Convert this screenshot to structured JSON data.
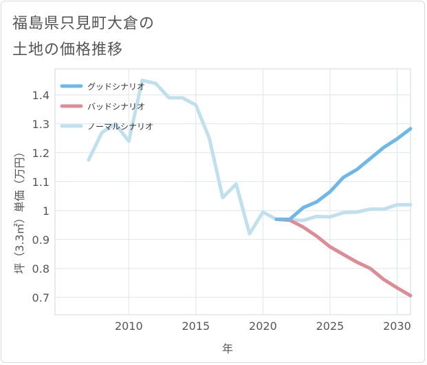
{
  "title_line1": "福島県只見町大倉の",
  "title_line2": "土地の価格推移",
  "chart_data": {
    "type": "line",
    "xlabel": "年",
    "ylabel": "坪（3.3㎡）単価（万円）",
    "xlim": [
      2004.5,
      2031
    ],
    "ylim": [
      0.64,
      1.49
    ],
    "x_ticks": [
      2010,
      2015,
      2020,
      2025,
      2030
    ],
    "y_ticks": [
      0.7,
      0.8,
      0.9,
      1.0,
      1.1,
      1.2,
      1.3,
      1.4
    ],
    "x_tick_labels": [
      "2010",
      "2015",
      "2020",
      "2025",
      "2030"
    ],
    "y_tick_labels": [
      "0.7",
      "0.8",
      "0.9",
      "1",
      "1.1",
      "1.2",
      "1.3",
      "1.4"
    ],
    "legend_position": "top-left",
    "series": [
      {
        "name": "グッドシナリオ",
        "color": "#6cb8ea",
        "x": [
          2021,
          2022,
          2023,
          2024,
          2025,
          2026,
          2027,
          2028,
          2029,
          2030,
          2031
        ],
        "values": [
          0.97,
          0.97,
          1.01,
          1.03,
          1.065,
          1.115,
          1.142,
          1.18,
          1.218,
          1.248,
          1.283
        ]
      },
      {
        "name": "バッドシナリオ",
        "color": "#dc8c92",
        "x": [
          2021,
          2022,
          2023,
          2024,
          2025,
          2026,
          2027,
          2028,
          2029,
          2030,
          2031
        ],
        "values": [
          0.97,
          0.967,
          0.943,
          0.912,
          0.875,
          0.848,
          0.822,
          0.8,
          0.762,
          0.733,
          0.706
        ]
      },
      {
        "name": "ノーマルシナリオ",
        "color": "#c0e0ee",
        "x": [
          2007,
          2008,
          2009,
          2010,
          2011,
          2012,
          2013,
          2014,
          2015,
          2016,
          2017,
          2018,
          2019,
          2020,
          2021,
          2022,
          2023,
          2024,
          2025,
          2026,
          2027,
          2028,
          2029,
          2030,
          2031
        ],
        "values": [
          1.175,
          1.27,
          1.3,
          1.24,
          1.45,
          1.44,
          1.39,
          1.39,
          1.365,
          1.25,
          1.045,
          1.092,
          0.92,
          0.995,
          0.97,
          0.968,
          0.966,
          0.98,
          0.978,
          0.993,
          0.995,
          1.005,
          1.005,
          1.02,
          1.02
        ]
      }
    ]
  }
}
